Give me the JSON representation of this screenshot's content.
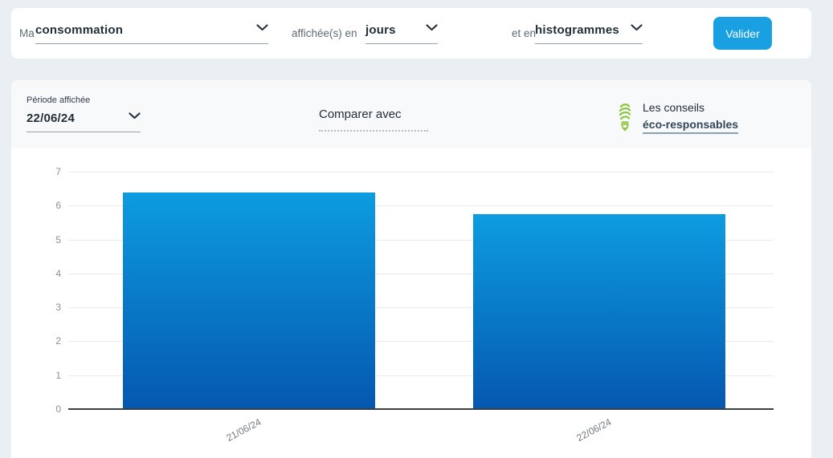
{
  "toolbar": {
    "prefix_label": "Ma",
    "metric_select": {
      "value": "consommation"
    },
    "unit_prefix_label": "affichée(s) en",
    "unit_select": {
      "value": "jours"
    },
    "display_prefix_label": "et en",
    "display_select": {
      "value": "histogrammes"
    },
    "submit_label": "Valider"
  },
  "filters": {
    "period_label": "Période affichée",
    "period_select": {
      "value": "22/06/24"
    },
    "compare_label": "Comparer avec",
    "tips": {
      "line1": "Les conseils",
      "line2": "éco-responsables",
      "icon": "cfl-bulb-icon"
    }
  },
  "colors": {
    "page_background": "#eaeff4",
    "card_background": "#ffffff",
    "filters_band_background": "#f7f9fb",
    "accent_button": "#18a0e2",
    "bar_gradient_top": "#0d9ce0",
    "bar_gradient_bottom": "#0558af",
    "bulb_icon_green": "#8dc63f",
    "grid_line": "#e9eaeb",
    "axis_line": "#3a3f42"
  },
  "chart_data": {
    "type": "bar",
    "categories": [
      "21/06/24",
      "22/06/24"
    ],
    "values": [
      6.35,
      5.72
    ],
    "title": "",
    "xlabel": "",
    "ylabel": "",
    "ylim": [
      0,
      7
    ],
    "ytick_step": 1,
    "grid": true,
    "legend": false,
    "bar_color_gradient": [
      "#0d9ce0",
      "#0558af"
    ]
  }
}
